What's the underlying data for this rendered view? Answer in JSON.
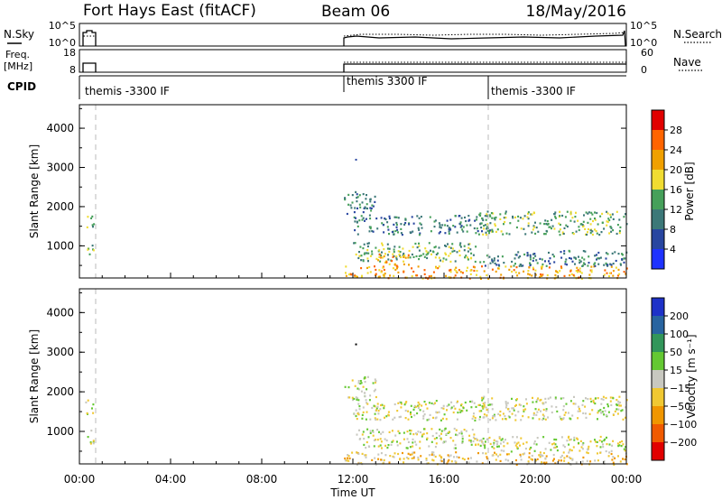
{
  "header": {
    "title": "Fort Hays East (fitACF)",
    "beam": "Beam 06",
    "date": "18/May/2016"
  },
  "panels": {
    "nsky": {
      "label": "N.Sky",
      "tick_top": "10^5",
      "tick_bottom": "10^0"
    },
    "nsearch": {
      "label": "N.Search",
      "tick_top": "10^5",
      "tick_bottom": "10^0"
    },
    "freq": {
      "label_line1": "Freq.",
      "label_line2": "[MHz]",
      "tick_top": "18",
      "tick_bottom": "8"
    },
    "nave": {
      "label": "Nave",
      "tick_top": "60",
      "tick_bottom": "0"
    },
    "cpid": {
      "label": "CPID",
      "segments": [
        {
          "start_hour": 0.0,
          "text": "themis -3300 IF"
        },
        {
          "start_hour": 11.6,
          "text": "themis 3300 IF"
        },
        {
          "start_hour": 18.0,
          "text": "themis -3300 IF"
        }
      ]
    }
  },
  "chart_data": [
    {
      "type": "heatmap",
      "ylabel": "Slant Range [km]",
      "xlabel": "",
      "xlim": [
        0,
        24
      ],
      "ylim": [
        180,
        4600
      ],
      "y_ticks": [
        1000,
        2000,
        3000,
        4000
      ],
      "colorbar": {
        "label": "Power [dB]",
        "ticks": [
          "4",
          "8",
          "12",
          "16",
          "20",
          "24",
          "28"
        ],
        "colors": [
          "#1e32ff",
          "#2846a0",
          "#3c7878",
          "#46a05a",
          "#f0dc32",
          "#f0a000",
          "#ff6400",
          "#e10000"
        ]
      },
      "echo_regions": [
        {
          "x": [
            0.25,
            0.6
          ],
          "y": [
            1450,
            1850
          ],
          "level": 3
        },
        {
          "x": [
            0.25,
            0.6
          ],
          "y": [
            700,
            1100
          ],
          "level": 3
        },
        {
          "x": [
            11.6,
            13.0
          ],
          "y": [
            1800,
            2400
          ],
          "level": 2
        },
        {
          "x": [
            12.0,
            18.0
          ],
          "y": [
            1300,
            1800
          ],
          "level": 2
        },
        {
          "x": [
            12.0,
            17.5
          ],
          "y": [
            600,
            1100
          ],
          "level": 3
        },
        {
          "x": [
            13.0,
            14.5
          ],
          "y": [
            500,
            900
          ],
          "level": 5
        },
        {
          "x": [
            11.6,
            24.0
          ],
          "y": [
            180,
            500
          ],
          "level": 5
        },
        {
          "x": [
            17.5,
            24.0
          ],
          "y": [
            1300,
            1900
          ],
          "level": 3
        },
        {
          "x": [
            17.5,
            24.0
          ],
          "y": [
            500,
            900
          ],
          "level": 2
        }
      ]
    },
    {
      "type": "heatmap",
      "ylabel": "Slant Range [km]",
      "xlabel": "Time UT",
      "xlim": [
        0,
        24
      ],
      "ylim": [
        180,
        4600
      ],
      "y_ticks": [
        1000,
        2000,
        3000,
        4000
      ],
      "x_ticks": [
        "00:00",
        "04:00",
        "08:00",
        "12:00",
        "16:00",
        "20:00",
        "00:00"
      ],
      "colorbar": {
        "label": "Velocity [m s⁻¹]",
        "ticks": [
          "200",
          "100",
          "50",
          "15",
          "−15",
          "−50",
          "−100",
          "−200"
        ],
        "colors": [
          "#1e32c8",
          "#2864a0",
          "#32965a",
          "#64c832",
          "#c8c8c0",
          "#f0c832",
          "#f09600",
          "#f05a00",
          "#e10000"
        ]
      },
      "echo_regions": [
        {
          "x": [
            0.25,
            0.6
          ],
          "y": [
            1450,
            1850
          ],
          "level": 4
        },
        {
          "x": [
            0.25,
            0.6
          ],
          "y": [
            700,
            1100
          ],
          "level": 4
        },
        {
          "x": [
            11.6,
            13.0
          ],
          "y": [
            1800,
            2400
          ],
          "level": 4
        },
        {
          "x": [
            12.0,
            18.0
          ],
          "y": [
            1300,
            1800
          ],
          "level": 4
        },
        {
          "x": [
            12.0,
            17.5
          ],
          "y": [
            600,
            1100
          ],
          "level": 4
        },
        {
          "x": [
            11.6,
            24.0
          ],
          "y": [
            180,
            500
          ],
          "level": 5
        },
        {
          "x": [
            17.5,
            24.0
          ],
          "y": [
            1300,
            1900
          ],
          "level": 4
        },
        {
          "x": [
            17.5,
            24.0
          ],
          "y": [
            500,
            900
          ],
          "level": 4
        }
      ]
    }
  ]
}
